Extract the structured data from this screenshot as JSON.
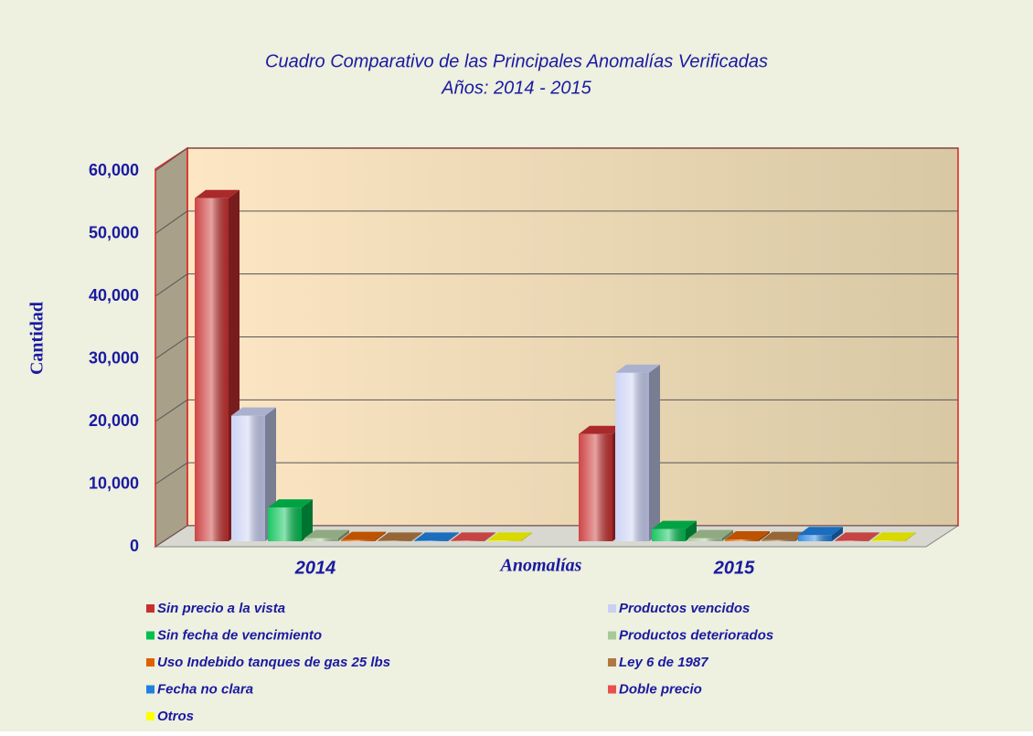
{
  "chart_data": {
    "type": "bar3d",
    "title": "Cuadro Comparativo de las Principales Anomalías Verificadas",
    "subtitle": "Años: 2014 - 2015",
    "x_label": "Anomalías",
    "y_label": "Cantidad",
    "categories": [
      "2014",
      "2015"
    ],
    "ylim": [
      0,
      60000
    ],
    "yticks": [
      0,
      {
        "value": 10000,
        "label": "10,000"
      },
      {
        "value": 20000,
        "label": "20,000"
      },
      {
        "value": 30000,
        "label": "30,000"
      },
      {
        "value": 40000,
        "label": "40,000"
      },
      {
        "value": 50000,
        "label": "50,000"
      },
      {
        "value": 60000,
        "label": "60,000"
      }
    ],
    "grid": true,
    "series": [
      {
        "name": "Sin precio a la vista",
        "color": "#c83030",
        "values": [
          56000,
          17500
        ]
      },
      {
        "name": "Productos vencidos",
        "color": "#c8d0f4",
        "values": [
          20500,
          27500
        ]
      },
      {
        "name": "Sin fecha de vencimiento",
        "color": "#00c050",
        "values": [
          5500,
          2000
        ]
      },
      {
        "name": "Productos deteriorados",
        "color": "#a8c898",
        "values": [
          500,
          500
        ]
      },
      {
        "name": "Uso Indebido tanques de gas 25 lbs",
        "color": "#e06000",
        "values": [
          200,
          300
        ]
      },
      {
        "name": "Ley 6 de 1987",
        "color": "#b07840",
        "values": [
          100,
          200
        ]
      },
      {
        "name": "Fecha no clara",
        "color": "#2080e0",
        "values": [
          100,
          1000
        ]
      },
      {
        "name": "Doble precio",
        "color": "#e85050",
        "values": [
          100,
          100
        ]
      },
      {
        "name": "Otros",
        "color": "#ffff00",
        "values": [
          100,
          100
        ]
      }
    ]
  }
}
